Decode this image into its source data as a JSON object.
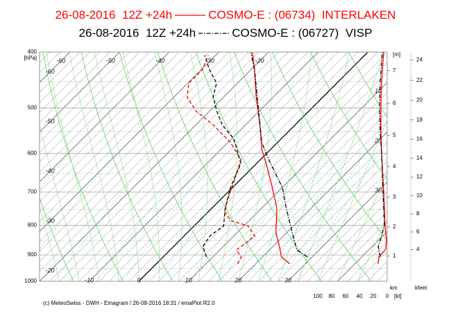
{
  "chart_data": {
    "type": "emagram",
    "ylim": [
      1000,
      400
    ],
    "yticks": [
      400,
      500,
      600,
      700,
      800,
      900,
      1000
    ],
    "ylog": true,
    "ylabel": "[hPa]",
    "xlim": [
      -20,
      50
    ],
    "isotherm_labels": {
      "top": [
        -60,
        -50,
        -40,
        -30,
        -20
      ],
      "left": [
        -60,
        -50,
        -40,
        -30,
        -20
      ],
      "bottom": [
        -10,
        0,
        10,
        20,
        30
      ],
      "right": [
        10,
        20,
        30
      ]
    },
    "wind_lim": [
      0,
      100
    ],
    "wind_ticks": [
      100,
      80,
      60,
      40,
      20,
      0
    ],
    "wind_label": "[kt]",
    "height_km_label": "[m]",
    "height_km_unit": "km",
    "height_km_ticks": [
      1,
      2,
      3,
      4,
      5,
      6,
      7
    ],
    "height_kft_unit": "kfeet",
    "height_kft_ticks": [
      4,
      6,
      8,
      10,
      12,
      14,
      16,
      18,
      20,
      22,
      24
    ],
    "footer": "(c) MeteoSwiss - DWH - Emagram / 26-08-2016  18:31  / emaPlot R2.0",
    "series": [
      {
        "run": "26-08-2016  12Z +24h",
        "name": "COSMO-E : (06734)  INTERLAKEN",
        "color": "#ff0000",
        "temperature_style": "solid",
        "dewpoint_style": "dashed",
        "temperature": {
          "pressure": [
            933,
            907,
            870,
            823,
            747,
            684,
            632,
            590,
            535,
            479,
            429,
            401
          ],
          "values": [
            26.9,
            23.8,
            21.3,
            17.8,
            13.1,
            7.7,
            2.7,
            -1.8,
            -7.1,
            -13.4,
            -19.3,
            -23.1
          ]
        },
        "dewpoint": {
          "pressure": [
            933,
            907,
            882,
            835,
            801,
            785,
            758,
            727,
            668,
            615,
            574,
            535,
            506,
            479,
            453,
            429,
            405
          ],
          "values": [
            16.4,
            15.7,
            13.3,
            14.3,
            10.8,
            6.3,
            3.4,
            1.7,
            -1.1,
            -3.9,
            -9.5,
            -16.5,
            -22.8,
            -27.3,
            -29.8,
            -29.8,
            -31.5
          ]
        },
        "wind": {
          "pressure": [
            933,
            907,
            880,
            850,
            800,
            700,
            600,
            550,
            500,
            450,
            400
          ],
          "values": [
            13,
            12,
            2,
            1,
            3,
            5,
            8,
            9,
            9,
            8,
            5
          ]
        }
      },
      {
        "run": "26-08-2016  12Z +24h",
        "name": "COSMO-E : (06727)  VISP",
        "color": "#000000",
        "temperature_style": "dashdot",
        "dewpoint_style": "dashed",
        "temperature": {
          "pressure": [
            907,
            882,
            835,
            747,
            688,
            615,
            574,
            493,
            429,
            401
          ],
          "values": [
            29.0,
            25.5,
            22.0,
            15.0,
            10.1,
            1.7,
            -3.2,
            -11.6,
            -19.3,
            -23.4
          ]
        },
        "dewpoint": {
          "pressure": [
            907,
            870,
            835,
            801,
            747,
            688,
            624,
            566,
            535,
            506,
            479,
            453,
            429,
            405
          ],
          "values": [
            8.7,
            5.9,
            5.2,
            5.9,
            2.7,
            -0.4,
            -3.2,
            -9.5,
            -14.7,
            -18.6,
            -22.1,
            -24.2,
            -28.4,
            -32.2
          ]
        },
        "wind": {
          "pressure": [
            907,
            870,
            850,
            800,
            700,
            600,
            550,
            500,
            450,
            400
          ],
          "values": [
            10,
            13,
            10,
            4,
            6,
            8,
            10,
            11,
            10,
            7
          ]
        }
      }
    ]
  }
}
